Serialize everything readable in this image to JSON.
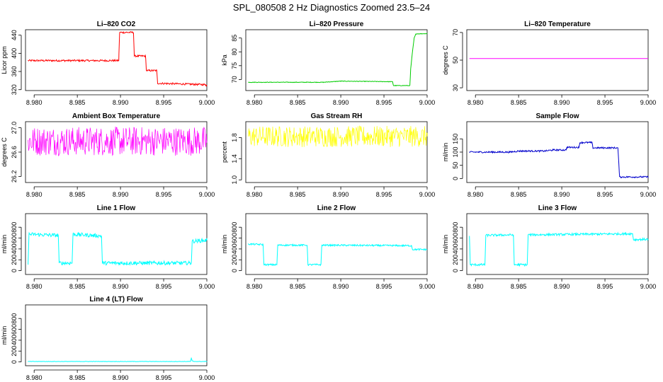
{
  "page": {
    "title": "SPL_080508  2 Hz Diagnostics Zoomed 23.5–24"
  },
  "chart_data": [
    {
      "type": "line",
      "title": "Li–820 CO2",
      "ylabel": "Licor ppm",
      "color": "#ff0000",
      "xlim": [
        8.979,
        9.0
      ],
      "ylim": [
        318,
        452
      ],
      "xticks": [
        8.98,
        8.985,
        8.99,
        8.995,
        9.0
      ],
      "xtick_labels": [
        "8.980",
        "8.985",
        "8.990",
        "8.995",
        "9.000"
      ],
      "yticks": [
        320,
        360,
        400,
        440
      ],
      "ytick_labels": [
        "320",
        "360",
        "400",
        "440"
      ],
      "noise": 2,
      "x": [
        8.9793,
        8.9898,
        8.9899,
        8.9915,
        8.9916,
        8.9929,
        8.993,
        8.9942,
        8.9943,
        8.9998,
        8.9999,
        9.0
      ],
      "y": [
        384,
        384,
        446,
        446,
        394,
        394,
        362,
        362,
        334,
        331,
        330,
        330
      ]
    },
    {
      "type": "line",
      "title": "Li–820 Pressure",
      "ylabel": "kPa",
      "color": "#00cc00",
      "xlim": [
        8.979,
        9.0
      ],
      "ylim": [
        66,
        88
      ],
      "xticks": [
        8.98,
        8.985,
        8.99,
        8.995,
        9.0
      ],
      "xtick_labels": [
        "8.980",
        "8.985",
        "8.990",
        "8.995",
        "9.000"
      ],
      "yticks": [
        70,
        75,
        80,
        85
      ],
      "ytick_labels": [
        "70",
        "75",
        "80",
        "85"
      ],
      "noise": 0.1,
      "x": [
        8.9793,
        8.988,
        8.99,
        8.996,
        8.9961,
        8.998,
        8.9981,
        8.9983,
        8.9985,
        8.9987,
        9.0
      ],
      "y": [
        69.0,
        69.0,
        69.4,
        69.2,
        67.8,
        67.8,
        74,
        80,
        85,
        86.5,
        86.6
      ]
    },
    {
      "type": "line",
      "title": "Li–820 Temperature",
      "ylabel": "degrees C",
      "color": "#ff00ff",
      "xlim": [
        8.979,
        9.0
      ],
      "ylim": [
        28,
        72
      ],
      "xticks": [
        8.98,
        8.985,
        8.99,
        8.995,
        9.0
      ],
      "xtick_labels": [
        "8.980",
        "8.985",
        "8.990",
        "8.995",
        "9.000"
      ],
      "yticks": [
        30,
        50,
        70
      ],
      "ytick_labels": [
        "30",
        "50",
        "70"
      ],
      "noise": 0,
      "x": [
        8.9793,
        9.0
      ],
      "y": [
        51.2,
        51.2
      ]
    },
    {
      "type": "line",
      "title": "Ambient Box Temperature",
      "ylabel": "degrees C",
      "color": "#ff00ff",
      "xlim": [
        8.979,
        9.0
      ],
      "ylim": [
        26.1,
        27.1
      ],
      "xticks": [
        8.98,
        8.985,
        8.99,
        8.995,
        9.0
      ],
      "xtick_labels": [
        "8.980",
        "8.985",
        "8.990",
        "8.995",
        "9.000"
      ],
      "yticks": [
        26.2,
        26.6,
        27.0
      ],
      "ytick_labels": [
        "26.2",
        "26.6",
        "27.0"
      ],
      "noise": 0.24,
      "x": [
        8.9793,
        9.0
      ],
      "y": [
        26.78,
        26.78
      ]
    },
    {
      "type": "line",
      "title": "Gas Stream RH",
      "ylabel": "percent",
      "color": "#ffff00",
      "xlim": [
        8.979,
        9.0
      ],
      "ylim": [
        0.95,
        2.1
      ],
      "xticks": [
        8.98,
        8.985,
        8.99,
        8.995,
        9.0
      ],
      "xtick_labels": [
        "8.980",
        "8.985",
        "8.990",
        "8.995",
        "9.000"
      ],
      "yticks": [
        1.0,
        1.4,
        1.8
      ],
      "ytick_labels": [
        "1.0",
        "1.4",
        "1.8"
      ],
      "noise": 0.2,
      "x": [
        8.9793,
        9.0
      ],
      "y": [
        1.82,
        1.82
      ]
    },
    {
      "type": "line",
      "title": "Sample Flow",
      "ylabel": "ml/min",
      "color": "#0000cc",
      "xlim": [
        8.979,
        9.0
      ],
      "ylim": [
        -15,
        215
      ],
      "xticks": [
        8.98,
        8.985,
        8.99,
        8.995,
        9.0
      ],
      "xtick_labels": [
        "8.980",
        "8.985",
        "8.990",
        "8.995",
        "9.000"
      ],
      "yticks": [
        0,
        50,
        100,
        150
      ],
      "ytick_labels": [
        "0",
        "50",
        "100",
        "150"
      ],
      "noise": 3,
      "x": [
        8.9793,
        8.984,
        8.985,
        8.988,
        8.989,
        8.9905,
        8.9906,
        8.992,
        8.9921,
        8.9935,
        8.9936,
        8.9965,
        8.9967,
        9.0
      ],
      "y": [
        100,
        100,
        104,
        104,
        108,
        108,
        118,
        118,
        136,
        136,
        116,
        116,
        6,
        6
      ]
    },
    {
      "type": "line",
      "title": "Line 1 Flow",
      "ylabel": "ml/min",
      "color": "#00ffff",
      "xlim": [
        8.979,
        9.0
      ],
      "ylim": [
        -70,
        1050
      ],
      "xticks": [
        8.98,
        8.985,
        8.99,
        8.995,
        9.0
      ],
      "xtick_labels": [
        "8.980",
        "8.985",
        "8.990",
        "8.995",
        "9.000"
      ],
      "yticks": [
        0,
        200,
        400,
        600,
        800
      ],
      "ytick_labels": [
        "0",
        "200",
        "400",
        "600",
        "800"
      ],
      "noise": 35,
      "x": [
        8.9793,
        8.9794,
        8.9828,
        8.9829,
        8.9844,
        8.9845,
        8.9878,
        8.9879,
        8.9982,
        8.9983,
        9.0
      ],
      "y": [
        140,
        670,
        650,
        140,
        140,
        670,
        640,
        140,
        140,
        540,
        560
      ]
    },
    {
      "type": "line",
      "title": "Line 2 Flow",
      "ylabel": "ml/min",
      "color": "#00ffff",
      "xlim": [
        8.979,
        9.0
      ],
      "ylim": [
        -70,
        1050
      ],
      "xticks": [
        8.98,
        8.985,
        8.99,
        8.995,
        9.0
      ],
      "xtick_labels": [
        "8.980",
        "8.985",
        "8.990",
        "8.995",
        "9.000"
      ],
      "yticks": [
        0,
        200,
        400,
        600,
        800
      ],
      "ytick_labels": [
        "0",
        "200",
        "400",
        "600",
        "800"
      ],
      "noise": 15,
      "x": [
        8.9793,
        8.981,
        8.9811,
        8.9826,
        8.9827,
        8.9861,
        8.9862,
        8.9877,
        8.9878,
        8.9982,
        8.9983,
        9.0
      ],
      "y": [
        490,
        480,
        110,
        110,
        470,
        470,
        110,
        110,
        470,
        460,
        390,
        390
      ]
    },
    {
      "type": "line",
      "title": "Line 3 Flow",
      "ylabel": "ml/min",
      "color": "#00ffff",
      "xlim": [
        8.979,
        9.0
      ],
      "ylim": [
        -70,
        1050
      ],
      "xticks": [
        8.98,
        8.985,
        8.99,
        8.995,
        9.0
      ],
      "xtick_labels": [
        "8.980",
        "8.985",
        "8.990",
        "8.995",
        "9.000"
      ],
      "yticks": [
        0,
        200,
        400,
        600,
        800
      ],
      "ytick_labels": [
        "0",
        "200",
        "400",
        "600",
        "800"
      ],
      "noise": 20,
      "x": [
        8.9793,
        8.9794,
        8.9811,
        8.9812,
        8.9844,
        8.9845,
        8.986,
        8.9861,
        8.9982,
        8.9983,
        9.0
      ],
      "y": [
        640,
        110,
        110,
        650,
        660,
        110,
        110,
        660,
        680,
        570,
        580
      ]
    },
    {
      "type": "line",
      "title": "Line 4 (LT) Flow",
      "ylabel": "ml/min",
      "color": "#00ffff",
      "xlim": [
        8.979,
        9.0
      ],
      "ylim": [
        -70,
        1050
      ],
      "xticks": [
        8.98,
        8.985,
        8.99,
        8.995,
        9.0
      ],
      "xtick_labels": [
        "8.980",
        "8.985",
        "8.990",
        "8.995",
        "9.000"
      ],
      "yticks": [
        0,
        200,
        400,
        600,
        800
      ],
      "ytick_labels": [
        "0",
        "200",
        "400",
        "600",
        "800"
      ],
      "noise": 3,
      "x": [
        8.9793,
        8.9981,
        8.9982,
        8.9983,
        8.9985,
        9.0
      ],
      "y": [
        8,
        8,
        70,
        20,
        8,
        8
      ]
    }
  ]
}
